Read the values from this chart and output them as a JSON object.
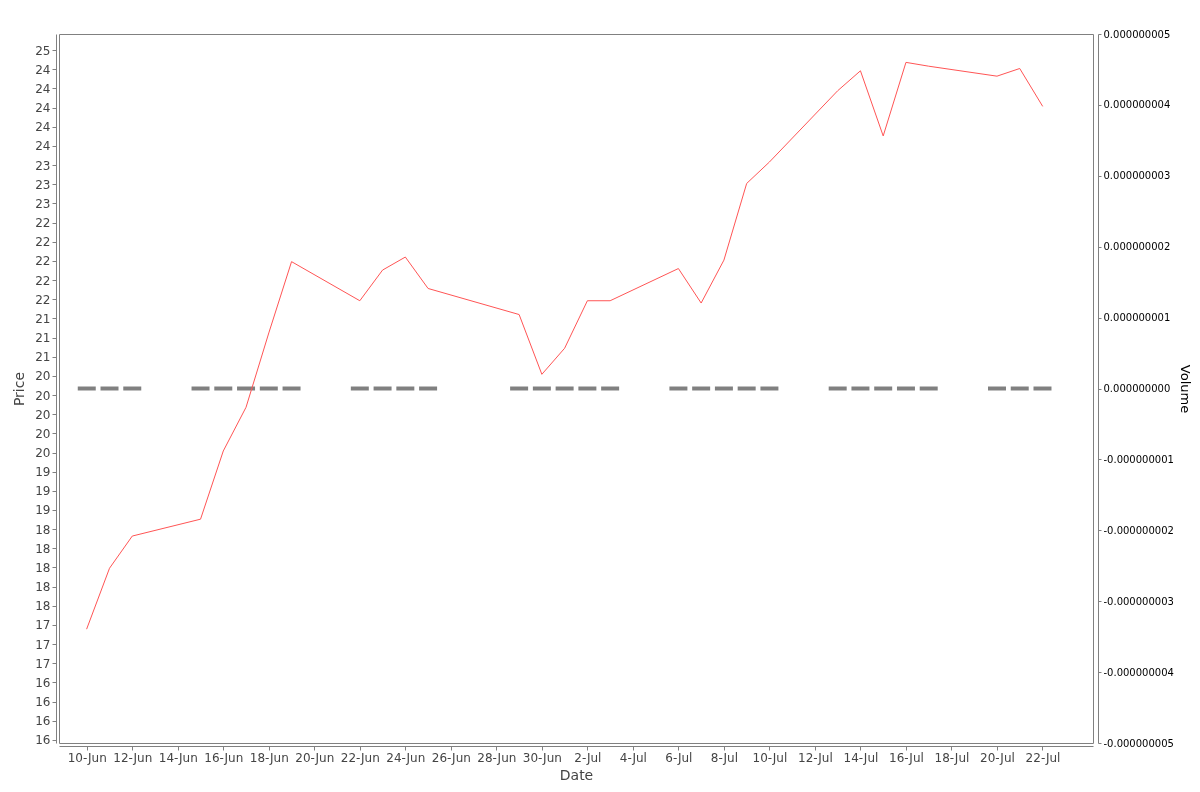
{
  "chart_data": {
    "type": "line",
    "xlabel": "Date",
    "ylabel": "Price",
    "y2label": "Volume",
    "x": [
      "--06-10",
      "--06-11",
      "--06-12",
      "--06-15",
      "--06-16",
      "--06-17",
      "--06-18",
      "--06-19",
      "--06-22",
      "--06-23",
      "--06-24",
      "--06-25",
      "--06-29",
      "--06-30",
      "--07-01",
      "--07-02",
      "--07-03",
      "--07-06",
      "--07-07",
      "--07-08",
      "--07-09",
      "--07-10",
      "--07-13",
      "--07-14",
      "--07-15",
      "--07-16",
      "--07-17",
      "--07-20",
      "--07-21",
      "--07-22"
    ],
    "series": [
      {
        "type": "bar",
        "axis": "y2",
        "color": "#808080",
        "values": [
          0,
          0,
          0,
          0,
          0,
          0,
          0,
          0,
          0,
          0,
          0,
          0,
          0,
          0,
          0,
          0,
          0,
          0,
          0,
          0,
          0,
          0,
          0,
          0,
          0,
          0,
          0,
          0,
          0,
          0
        ]
      },
      {
        "color": "#ff5555",
        "values": [
          17.2,
          17.99,
          18.41,
          18.63,
          19.52,
          20.09,
          21.06,
          21.99,
          21.48,
          21.88,
          22.05,
          21.64,
          21.3,
          20.52,
          20.86,
          21.48,
          21.48,
          21.9,
          21.45,
          22.01,
          23.01,
          23.29,
          24.22,
          24.48,
          23.63,
          24.59,
          24.54,
          24.41,
          24.51,
          24.02
        ]
      }
    ],
    "xlim": [
      "--06-09",
      "--07-24"
    ],
    "xticks": [
      {
        "value": "--06-10",
        "label": "10-Jun"
      },
      {
        "value": "--06-12",
        "label": "12-Jun"
      },
      {
        "value": "--06-14",
        "label": "14-Jun"
      },
      {
        "value": "--06-16",
        "label": "16-Jun"
      },
      {
        "value": "--06-18",
        "label": "18-Jun"
      },
      {
        "value": "--06-20",
        "label": "20-Jun"
      },
      {
        "value": "--06-22",
        "label": "22-Jun"
      },
      {
        "value": "--06-24",
        "label": "24-Jun"
      },
      {
        "value": "--06-26",
        "label": "26-Jun"
      },
      {
        "value": "--06-28",
        "label": "28-Jun"
      },
      {
        "value": "--06-30",
        "label": "30-Jun"
      },
      {
        "value": "--07-02",
        "label": "2-Jul"
      },
      {
        "value": "--07-04",
        "label": "4-Jul"
      },
      {
        "value": "--07-06",
        "label": "6-Jul"
      },
      {
        "value": "--07-08",
        "label": "8-Jul"
      },
      {
        "value": "--07-10",
        "label": "10-Jul"
      },
      {
        "value": "--07-12",
        "label": "12-Jul"
      },
      {
        "value": "--07-14",
        "label": "14-Jul"
      },
      {
        "value": "--07-16",
        "label": "16-Jul"
      },
      {
        "value": "--07-18",
        "label": "18-Jul"
      },
      {
        "value": "--07-20",
        "label": "20-Jul"
      },
      {
        "value": "--07-22",
        "label": "22-Jul"
      }
    ],
    "ylim": [
      15.71,
      24.96
    ],
    "yticks": [
      {
        "value": 15.75,
        "label": "16"
      },
      16,
      {
        "value": 16.25,
        "label": "16"
      },
      {
        "value": 16.5,
        "label": "16"
      },
      {
        "value": 16.75,
        "label": "17"
      },
      17,
      {
        "value": 17.25,
        "label": "17"
      },
      {
        "value": 17.5,
        "label": "18"
      },
      {
        "value": 17.75,
        "label": "18"
      },
      18,
      {
        "value": 18.25,
        "label": "18"
      },
      {
        "value": 18.5,
        "label": "18"
      },
      {
        "value": 18.75,
        "label": "19"
      },
      19,
      {
        "value": 19.25,
        "label": "19"
      },
      {
        "value": 19.5,
        "label": "20"
      },
      {
        "value": 19.75,
        "label": "20"
      },
      20,
      {
        "value": 20.25,
        "label": "20"
      },
      {
        "value": 20.5,
        "label": "20"
      },
      {
        "value": 20.75,
        "label": "21"
      },
      21,
      {
        "value": 21.25,
        "label": "21"
      },
      {
        "value": 21.5,
        "label": "22"
      },
      {
        "value": 21.75,
        "label": "22"
      },
      22,
      {
        "value": 22.25,
        "label": "22"
      },
      {
        "value": 22.5,
        "label": "22"
      },
      {
        "value": 22.75,
        "label": "23"
      },
      23,
      {
        "value": 23.25,
        "label": "23"
      },
      {
        "value": 23.5,
        "label": "24"
      },
      {
        "value": 23.75,
        "label": "24"
      },
      24,
      {
        "value": 24.25,
        "label": "24"
      },
      {
        "value": 24.5,
        "label": "24"
      },
      {
        "value": 24.75,
        "label": "25"
      }
    ],
    "y2lim": [
      -5e-09,
      5e-09
    ],
    "y2ticks": [
      {
        "value": -5e-09,
        "label": "-0.000000005"
      },
      {
        "value": -4e-09,
        "label": "-0.000000004"
      },
      {
        "value": -3e-09,
        "label": "-0.000000003"
      },
      {
        "value": -2e-09,
        "label": "-0.000000002"
      },
      {
        "value": -1e-09,
        "label": "-0.000000001"
      },
      {
        "value": 0,
        "label": "0.000000000"
      },
      {
        "value": 1e-09,
        "label": "0.000000001"
      },
      {
        "value": 2e-09,
        "label": "0.000000002"
      },
      {
        "value": 3e-09,
        "label": "0.000000003"
      },
      {
        "value": 4e-09,
        "label": "0.000000004"
      },
      {
        "value": 5e-09,
        "label": "0.000000005"
      }
    ]
  }
}
